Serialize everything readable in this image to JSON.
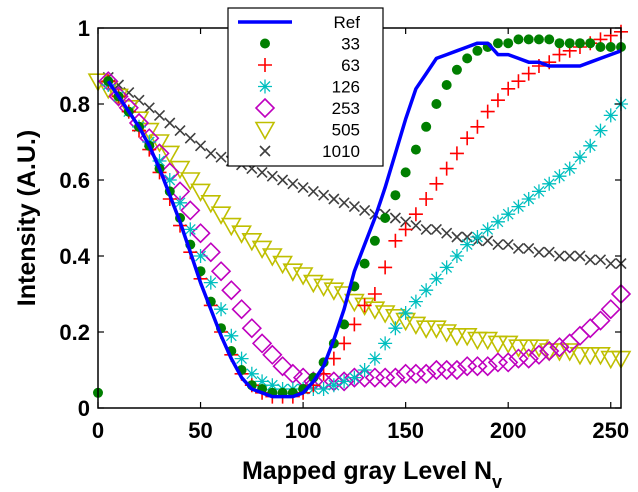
{
  "chart_data": {
    "type": "scatter",
    "title": "",
    "xlabel": "Mapped gray Level N",
    "xlabel_subscript": "v",
    "ylabel": "Intensity (A.U.)",
    "xlim": [
      0,
      255
    ],
    "ylim": [
      0,
      1
    ],
    "x_ticks": [
      "0",
      "50",
      "100",
      "150",
      "200",
      "250"
    ],
    "y_ticks": [
      "0",
      "0.2",
      "0.4",
      "0.6",
      "0.8",
      "1"
    ],
    "grid": false,
    "legend_position": "top-center",
    "series": [
      {
        "name": "Ref",
        "marker": "line",
        "color": "#0000ff",
        "x": [
          5,
          10,
          15,
          20,
          25,
          30,
          35,
          40,
          45,
          50,
          55,
          60,
          65,
          70,
          75,
          80,
          85,
          90,
          95,
          100,
          105,
          110,
          115,
          120,
          125,
          130,
          135,
          140,
          145,
          150,
          155,
          160,
          165,
          170,
          175,
          180,
          185,
          190,
          195,
          200,
          205,
          210,
          215,
          220,
          225,
          230,
          235,
          240,
          245,
          250,
          255
        ],
        "y": [
          0.86,
          0.82,
          0.78,
          0.74,
          0.69,
          0.63,
          0.56,
          0.49,
          0.41,
          0.33,
          0.26,
          0.19,
          0.13,
          0.08,
          0.05,
          0.04,
          0.03,
          0.03,
          0.03,
          0.04,
          0.07,
          0.11,
          0.18,
          0.26,
          0.36,
          0.43,
          0.5,
          0.58,
          0.67,
          0.76,
          0.84,
          0.88,
          0.92,
          0.93,
          0.94,
          0.95,
          0.96,
          0.96,
          0.93,
          0.93,
          0.92,
          0.91,
          0.91,
          0.9,
          0.9,
          0.9,
          0.9,
          0.91,
          0.92,
          0.93,
          0.94
        ]
      },
      {
        "name": "33",
        "marker": "dot",
        "color": "#007f00",
        "x": [
          0,
          5,
          10,
          15,
          20,
          25,
          30,
          35,
          40,
          45,
          50,
          55,
          60,
          65,
          70,
          75,
          80,
          85,
          90,
          95,
          100,
          105,
          110,
          115,
          120,
          125,
          130,
          135,
          140,
          145,
          150,
          155,
          160,
          165,
          170,
          175,
          180,
          185,
          190,
          195,
          200,
          205,
          210,
          215,
          220,
          225,
          230,
          235,
          240,
          245,
          250,
          255
        ],
        "y": [
          0.04,
          0.86,
          0.82,
          0.78,
          0.74,
          0.69,
          0.63,
          0.57,
          0.5,
          0.43,
          0.36,
          0.28,
          0.21,
          0.15,
          0.1,
          0.06,
          0.05,
          0.04,
          0.04,
          0.04,
          0.05,
          0.08,
          0.12,
          0.17,
          0.22,
          0.32,
          0.38,
          0.44,
          0.5,
          0.56,
          0.62,
          0.68,
          0.74,
          0.8,
          0.85,
          0.89,
          0.92,
          0.94,
          0.95,
          0.96,
          0.96,
          0.97,
          0.97,
          0.97,
          0.97,
          0.96,
          0.96,
          0.96,
          0.96,
          0.95,
          0.95,
          0.95
        ]
      },
      {
        "name": "63",
        "marker": "plus",
        "color": "#ff0000",
        "x": [
          5,
          10,
          15,
          20,
          25,
          30,
          35,
          40,
          45,
          50,
          55,
          60,
          65,
          70,
          75,
          80,
          85,
          90,
          95,
          100,
          105,
          110,
          115,
          120,
          125,
          130,
          135,
          140,
          145,
          150,
          155,
          160,
          165,
          170,
          175,
          180,
          185,
          190,
          195,
          200,
          205,
          210,
          215,
          220,
          225,
          230,
          235,
          240,
          245,
          250,
          255
        ],
        "y": [
          0.86,
          0.82,
          0.78,
          0.73,
          0.68,
          0.62,
          0.55,
          0.48,
          0.41,
          0.34,
          0.27,
          0.2,
          0.14,
          0.09,
          0.06,
          0.04,
          0.03,
          0.03,
          0.03,
          0.04,
          0.06,
          0.09,
          0.13,
          0.17,
          0.22,
          0.27,
          0.3,
          0.37,
          0.44,
          0.47,
          0.51,
          0.55,
          0.59,
          0.63,
          0.67,
          0.71,
          0.74,
          0.78,
          0.81,
          0.84,
          0.86,
          0.88,
          0.9,
          0.91,
          0.93,
          0.94,
          0.95,
          0.96,
          0.97,
          0.98,
          0.99
        ]
      },
      {
        "name": "126",
        "marker": "asterisk",
        "color": "#00bfbf",
        "x": [
          5,
          10,
          15,
          20,
          25,
          30,
          35,
          40,
          45,
          50,
          55,
          60,
          65,
          70,
          75,
          80,
          85,
          90,
          95,
          100,
          105,
          110,
          115,
          120,
          125,
          130,
          135,
          140,
          145,
          150,
          155,
          160,
          165,
          170,
          175,
          180,
          185,
          190,
          195,
          200,
          205,
          210,
          215,
          220,
          225,
          230,
          235,
          240,
          245,
          250,
          255
        ],
        "y": [
          0.85,
          0.82,
          0.78,
          0.74,
          0.7,
          0.65,
          0.6,
          0.54,
          0.47,
          0.4,
          0.33,
          0.26,
          0.19,
          0.13,
          0.09,
          0.07,
          0.06,
          0.05,
          0.05,
          0.05,
          0.05,
          0.05,
          0.06,
          0.07,
          0.08,
          0.1,
          0.13,
          0.17,
          0.21,
          0.25,
          0.28,
          0.31,
          0.34,
          0.37,
          0.4,
          0.43,
          0.45,
          0.47,
          0.49,
          0.51,
          0.53,
          0.55,
          0.57,
          0.59,
          0.61,
          0.63,
          0.66,
          0.69,
          0.73,
          0.77,
          0.8
        ]
      },
      {
        "name": "253",
        "marker": "diamond",
        "color": "#bf00bf",
        "x": [
          5,
          10,
          15,
          20,
          25,
          30,
          35,
          40,
          45,
          50,
          55,
          60,
          65,
          70,
          75,
          80,
          85,
          90,
          95,
          100,
          105,
          110,
          115,
          120,
          125,
          130,
          135,
          140,
          145,
          150,
          155,
          160,
          165,
          170,
          175,
          180,
          185,
          190,
          195,
          200,
          205,
          210,
          215,
          220,
          225,
          230,
          235,
          240,
          245,
          250,
          255
        ],
        "y": [
          0.86,
          0.82,
          0.79,
          0.75,
          0.71,
          0.67,
          0.62,
          0.57,
          0.52,
          0.46,
          0.41,
          0.36,
          0.31,
          0.26,
          0.21,
          0.17,
          0.14,
          0.11,
          0.09,
          0.08,
          0.07,
          0.07,
          0.07,
          0.07,
          0.08,
          0.08,
          0.08,
          0.08,
          0.08,
          0.09,
          0.09,
          0.09,
          0.1,
          0.1,
          0.1,
          0.11,
          0.11,
          0.11,
          0.12,
          0.12,
          0.13,
          0.13,
          0.14,
          0.15,
          0.16,
          0.17,
          0.19,
          0.21,
          0.23,
          0.26,
          0.3
        ]
      },
      {
        "name": "505",
        "marker": "triangle-down",
        "color": "#bfbf00",
        "x": [
          0,
          5,
          10,
          15,
          20,
          25,
          30,
          35,
          40,
          45,
          50,
          55,
          60,
          65,
          70,
          75,
          80,
          85,
          90,
          95,
          100,
          105,
          110,
          115,
          120,
          125,
          130,
          135,
          140,
          145,
          150,
          155,
          160,
          165,
          170,
          175,
          180,
          185,
          190,
          195,
          200,
          205,
          210,
          215,
          220,
          225,
          230,
          235,
          240,
          245,
          250,
          255
        ],
        "y": [
          0.86,
          0.84,
          0.82,
          0.79,
          0.76,
          0.73,
          0.7,
          0.67,
          0.63,
          0.6,
          0.57,
          0.54,
          0.51,
          0.48,
          0.46,
          0.44,
          0.42,
          0.4,
          0.38,
          0.36,
          0.35,
          0.33,
          0.32,
          0.31,
          0.3,
          0.28,
          0.27,
          0.26,
          0.25,
          0.24,
          0.23,
          0.22,
          0.21,
          0.21,
          0.2,
          0.19,
          0.19,
          0.18,
          0.18,
          0.17,
          0.17,
          0.16,
          0.16,
          0.16,
          0.15,
          0.15,
          0.15,
          0.14,
          0.14,
          0.14,
          0.13,
          0.13
        ]
      },
      {
        "name": "1010",
        "marker": "cross",
        "color": "#3f3f3f",
        "x": [
          5,
          10,
          15,
          20,
          25,
          30,
          35,
          40,
          45,
          50,
          55,
          60,
          65,
          70,
          75,
          80,
          85,
          90,
          95,
          100,
          105,
          110,
          115,
          120,
          125,
          130,
          135,
          140,
          145,
          150,
          155,
          160,
          165,
          170,
          175,
          180,
          185,
          190,
          195,
          200,
          205,
          210,
          215,
          220,
          225,
          230,
          235,
          240,
          245,
          250,
          255
        ],
        "y": [
          0.87,
          0.85,
          0.83,
          0.81,
          0.79,
          0.77,
          0.75,
          0.73,
          0.71,
          0.69,
          0.67,
          0.66,
          0.65,
          0.64,
          0.63,
          0.62,
          0.61,
          0.6,
          0.59,
          0.58,
          0.57,
          0.56,
          0.55,
          0.54,
          0.53,
          0.52,
          0.51,
          0.51,
          0.5,
          0.49,
          0.48,
          0.47,
          0.47,
          0.46,
          0.45,
          0.45,
          0.44,
          0.44,
          0.43,
          0.43,
          0.42,
          0.42,
          0.41,
          0.41,
          0.4,
          0.4,
          0.4,
          0.39,
          0.39,
          0.38,
          0.38
        ]
      }
    ]
  }
}
